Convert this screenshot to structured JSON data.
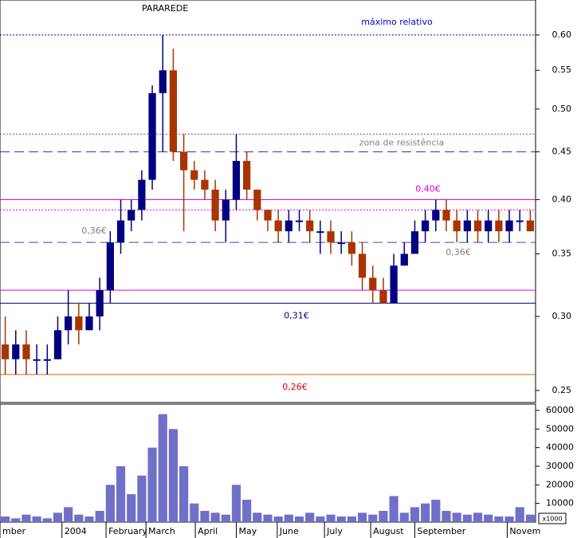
{
  "chart_data": [
    {
      "type": "ohlc",
      "title": "PARAREDE",
      "log_scale": true,
      "categories": [
        null,
        null,
        null,
        null,
        null,
        null,
        null,
        null,
        null,
        null,
        null,
        null,
        null,
        null,
        null,
        null,
        null,
        null,
        null,
        null,
        null,
        null,
        null,
        null,
        null,
        null,
        null,
        null,
        null,
        null,
        null,
        null,
        null,
        null,
        null,
        null,
        null,
        null,
        null,
        null,
        null,
        null,
        null,
        null,
        null,
        null,
        null,
        null,
        null,
        null,
        null
      ],
      "open": [
        0.28,
        0.27,
        0.28,
        0.27,
        0.27,
        0.27,
        0.29,
        0.3,
        0.29,
        0.3,
        0.32,
        0.36,
        0.38,
        0.39,
        0.42,
        0.52,
        0.55,
        0.45,
        0.43,
        0.42,
        0.41,
        0.38,
        0.4,
        0.44,
        0.41,
        0.39,
        0.38,
        0.37,
        0.38,
        0.38,
        0.37,
        0.37,
        0.36,
        0.36,
        0.35,
        0.33,
        0.32,
        0.31,
        0.34,
        0.35,
        0.37,
        0.38,
        0.39,
        0.38,
        0.37,
        0.38,
        0.37,
        0.38,
        0.37,
        0.38,
        0.38
      ],
      "high": [
        0.3,
        0.29,
        0.29,
        0.28,
        0.28,
        0.3,
        0.32,
        0.31,
        0.31,
        0.33,
        0.37,
        0.4,
        0.4,
        0.43,
        0.53,
        0.6,
        0.58,
        0.47,
        0.44,
        0.43,
        0.42,
        0.41,
        0.47,
        0.45,
        0.41,
        0.39,
        0.39,
        0.39,
        0.39,
        0.39,
        0.38,
        0.38,
        0.37,
        0.37,
        0.36,
        0.34,
        0.33,
        0.35,
        0.36,
        0.38,
        0.39,
        0.4,
        0.4,
        0.39,
        0.39,
        0.39,
        0.39,
        0.39,
        0.39,
        0.39,
        0.39
      ],
      "low": [
        0.26,
        0.26,
        0.26,
        0.26,
        0.26,
        0.27,
        0.28,
        0.28,
        0.29,
        0.29,
        0.31,
        0.35,
        0.37,
        0.38,
        0.41,
        0.45,
        0.44,
        0.37,
        0.41,
        0.4,
        0.37,
        0.36,
        0.39,
        0.4,
        0.38,
        0.37,
        0.36,
        0.36,
        0.37,
        0.36,
        0.35,
        0.35,
        0.35,
        0.34,
        0.32,
        0.31,
        0.31,
        0.31,
        0.34,
        0.35,
        0.36,
        0.37,
        0.37,
        0.36,
        0.36,
        0.36,
        0.36,
        0.36,
        0.36,
        0.37,
        0.37
      ],
      "close": [
        0.27,
        0.28,
        0.27,
        0.27,
        0.27,
        0.29,
        0.3,
        0.29,
        0.3,
        0.32,
        0.36,
        0.38,
        0.39,
        0.42,
        0.52,
        0.55,
        0.45,
        0.43,
        0.42,
        0.41,
        0.38,
        0.4,
        0.44,
        0.41,
        0.39,
        0.38,
        0.37,
        0.38,
        0.38,
        0.37,
        0.37,
        0.36,
        0.36,
        0.35,
        0.33,
        0.32,
        0.31,
        0.34,
        0.35,
        0.37,
        0.38,
        0.39,
        0.38,
        0.37,
        0.38,
        0.37,
        0.38,
        0.37,
        0.38,
        0.38,
        0.37
      ],
      "up_color": "#000080",
      "down_color": "#a83400",
      "ylim": [
        0.2427,
        0.654
      ],
      "yticks": [
        0.25,
        {
          "value": 0.3,
          "label": "0.30"
        },
        0.35,
        {
          "value": 0.4,
          "label": "0.40"
        },
        0.45,
        {
          "value": 0.5,
          "label": "0.50"
        },
        0.55,
        {
          "value": 0.6,
          "label": "0.60"
        }
      ],
      "lines": [
        {
          "value": 0.6,
          "labels": [
            "máximo relativo"
          ],
          "color": "#0000cc",
          "label_color": "#0000cc",
          "style": "dotted"
        },
        {
          "value": 0.47,
          "color": "#9933cc",
          "style": "dotted"
        },
        {
          "value": 0.45,
          "labels": [
            "zona de resistência"
          ],
          "color": "#3333aa",
          "label_color": "#808080",
          "style": "dashed"
        },
        {
          "value": 0.4,
          "labels": [
            "0,40€"
          ],
          "color": "#e000e0",
          "label_color": "#e000e0",
          "style": "solid"
        },
        {
          "value": 0.39,
          "color": "#e000e0",
          "style": "dotted"
        },
        {
          "value": 0.36,
          "labels": [
            "0,36€",
            "0,36€"
          ],
          "color": "#4444aa",
          "label_color": "#808080",
          "style": "dashed"
        },
        {
          "value": 0.32,
          "color": "#e000e0",
          "style": "solid"
        },
        {
          "value": 0.31,
          "labels": [
            "0,31€"
          ],
          "color": "#000080",
          "label_color": "#000080",
          "style": "solid"
        },
        {
          "value": 0.26,
          "labels": [
            "0,26€"
          ],
          "color": "#e06000",
          "label_color": "#e00000",
          "style": "solid"
        }
      ]
    },
    {
      "type": "bar",
      "unit_label": "x1000",
      "values": [
        3000,
        2000,
        4000,
        3000,
        2000,
        5000,
        8000,
        4000,
        3000,
        6000,
        20000,
        30000,
        15000,
        25000,
        40000,
        58000,
        50000,
        30000,
        10000,
        6000,
        5000,
        4000,
        20000,
        12000,
        5000,
        4000,
        3000,
        4000,
        3000,
        5000,
        3000,
        4000,
        3000,
        3000,
        5000,
        4000,
        6000,
        14000,
        5000,
        8000,
        10000,
        12000,
        6000,
        5000,
        4000,
        5000,
        4000,
        3000,
        3000,
        8000,
        4000
      ],
      "color": "#7070c8",
      "ylim": [
        0,
        63400
      ],
      "yticks": [
        10000,
        20000,
        30000,
        40000,
        50000,
        60000
      ],
      "xticks": [
        {
          "value": 0,
          "label": "mber"
        },
        {
          "value": 5.9,
          "label": "2004"
        },
        {
          "value": 10.1,
          "label": "February"
        },
        {
          "value": 13.9,
          "label": "March"
        },
        {
          "value": 18.6,
          "label": "April"
        },
        {
          "value": 22.5,
          "label": "May"
        },
        {
          "value": 26.4,
          "label": "June"
        },
        {
          "value": 30.9,
          "label": "July"
        },
        {
          "value": 35.3,
          "label": "August"
        },
        {
          "value": 39.5,
          "label": "September"
        },
        {
          "value": 48.3,
          "label": "Novem"
        }
      ]
    }
  ]
}
